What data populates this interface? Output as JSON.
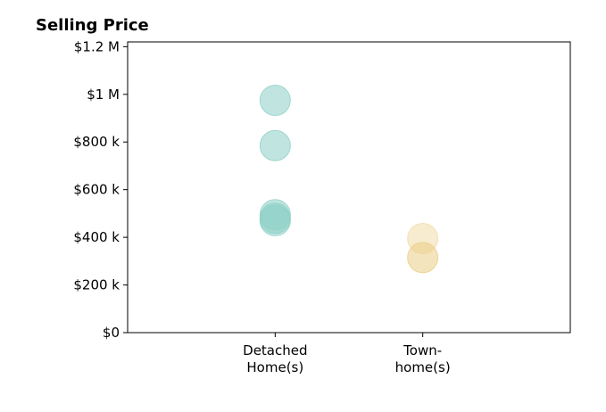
{
  "chart_data": {
    "type": "scatter",
    "title": "Selling Price",
    "xlabel": "",
    "ylabel": "",
    "categories": [
      "Detached\nHome(s)",
      "Town-\nhome(s)"
    ],
    "ylim": [
      0,
      1220000
    ],
    "y_ticks": [
      {
        "value": 0,
        "label": "$0"
      },
      {
        "value": 200000,
        "label": "$200 k"
      },
      {
        "value": 400000,
        "label": "$400 k"
      },
      {
        "value": 600000,
        "label": "$600 k"
      },
      {
        "value": 800000,
        "label": "$800 k"
      },
      {
        "value": 1000000,
        "label": "$1 M"
      },
      {
        "value": 1200000,
        "label": "$1.2 M"
      }
    ],
    "grid": false,
    "legend": "none",
    "series": [
      {
        "category": "Detached\nHome(s)",
        "color": "#8ccfc6",
        "values": [
          975000,
          785000,
          495000,
          480000,
          470000
        ]
      },
      {
        "category": "Town-\nhome(s)",
        "color": "#f0dca8",
        "values": [
          395000
        ]
      },
      {
        "category": "Town-\nhome(s)",
        "color": "#ebcd86",
        "values": [
          315000
        ]
      }
    ]
  }
}
